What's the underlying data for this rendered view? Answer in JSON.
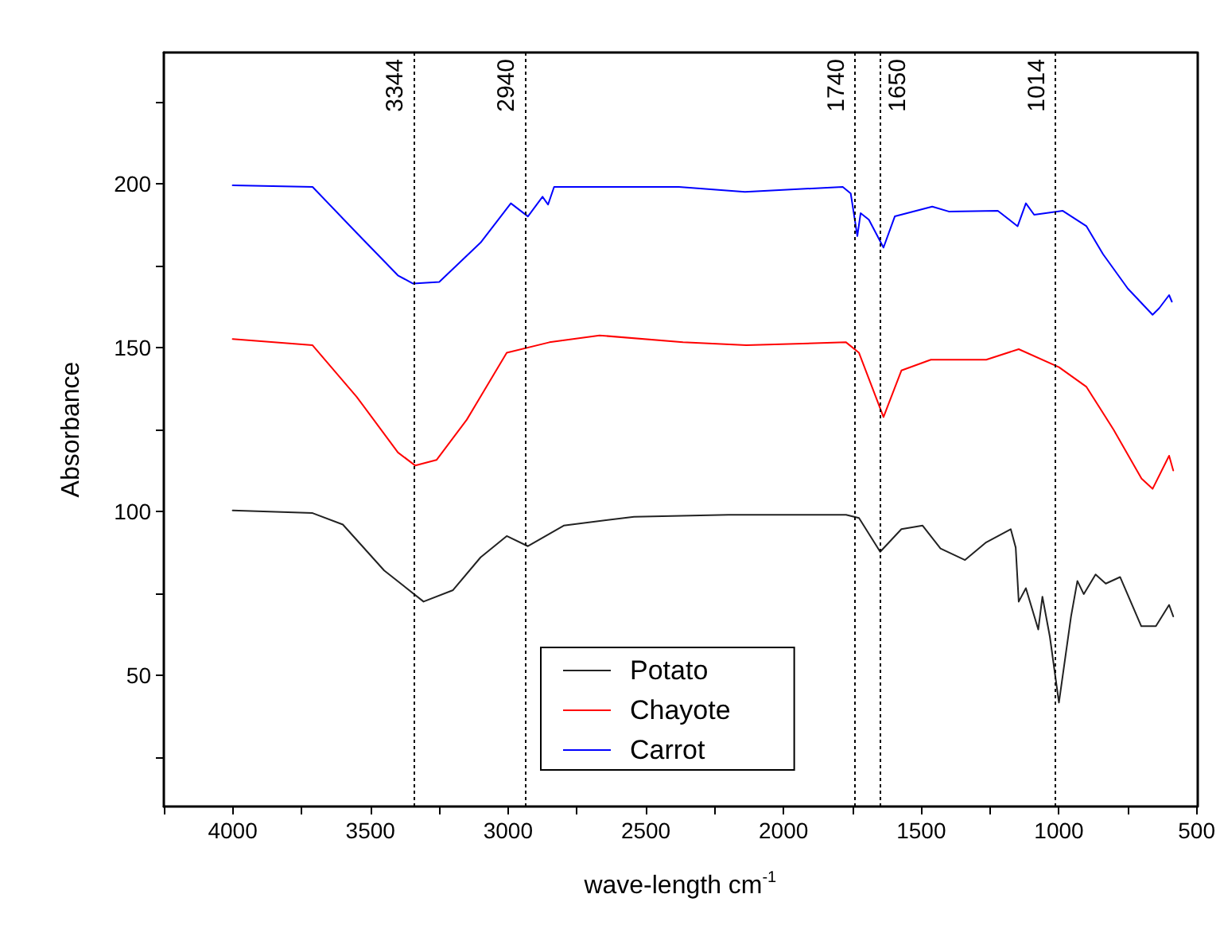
{
  "chart_data": {
    "type": "line",
    "xlabel": "wave-length cm$^{-1}$",
    "ylabel": "Absorbance",
    "xlim": [
      4250,
      500
    ],
    "ylim": [
      10,
      240
    ],
    "xticks": [
      {
        "value": 4250,
        "label": null
      },
      4000,
      {
        "value": 3750,
        "label": null
      },
      3500,
      {
        "value": 3250,
        "label": null
      },
      3000,
      {
        "value": 2750,
        "label": null
      },
      2500,
      {
        "value": 2250,
        "label": null
      },
      2000,
      {
        "value": 1750,
        "label": null
      },
      1500,
      {
        "value": 1250,
        "label": null
      },
      1000,
      {
        "value": 750,
        "label": null
      },
      500
    ],
    "yticks": [
      {
        "value": 25,
        "label": null
      },
      50,
      {
        "value": 75,
        "label": null
      },
      100,
      {
        "value": 125,
        "label": null
      },
      150,
      {
        "value": 175,
        "label": null
      },
      200,
      {
        "value": 225,
        "label": null
      }
    ],
    "grid": false,
    "legend": "bottom",
    "marker": "none",
    "line_style": "solid",
    "ref_lines": [
      {
        "axis": "x",
        "value": 3344,
        "label": "3344",
        "color": "#000000",
        "line_style": "dotted"
      },
      {
        "axis": "x",
        "value": 2940,
        "label": "2940",
        "color": "#000000",
        "line_style": "dotted"
      },
      {
        "axis": "x",
        "value": 1740,
        "label": "1740",
        "color": "#000000",
        "line_style": "dotted"
      },
      {
        "axis": "x",
        "value": 1650,
        "label": "1650",
        "color": "#000000",
        "line_style": "dotted"
      },
      {
        "axis": "x",
        "value": 1014,
        "label": "1014",
        "color": "#000000",
        "line_style": "dotted"
      }
    ],
    "series": [
      {
        "name": "Potato",
        "color": "#222222",
        "x": [
          4000,
          3710,
          3600,
          3450,
          3307,
          3200,
          3100,
          3005,
          2928,
          2798,
          2543,
          2200,
          1773,
          1726,
          1649,
          1572,
          1495,
          1430,
          1341,
          1264,
          1175,
          1157,
          1146,
          1120,
          1075,
          1060,
          1033,
          1000,
          956,
          933,
          910,
          867,
          830,
          778,
          701,
          648,
          600,
          585
        ],
        "values": [
          100.3,
          99.5,
          96,
          82,
          72.5,
          76,
          86,
          92.5,
          89.4,
          95.7,
          98.4,
          99,
          99,
          98,
          87.7,
          94.6,
          95.7,
          88.7,
          85.2,
          90.6,
          94.6,
          89,
          72.5,
          76.6,
          64,
          74,
          61.8,
          41.7,
          68,
          78.8,
          74.8,
          80.8,
          78,
          80,
          65,
          65,
          71.5,
          68
        ]
      },
      {
        "name": "Chayote",
        "color": "#ff0000",
        "x": [
          4000,
          3710,
          3550,
          3400,
          3337,
          3260,
          3150,
          3005,
          2850,
          2668,
          2365,
          2135,
          1773,
          1726,
          1637,
          1572,
          1465,
          1264,
          1146,
          1000,
          900,
          802,
          700,
          660,
          600,
          585
        ],
        "values": [
          152.6,
          150.7,
          135,
          118,
          114,
          115.7,
          128,
          148.4,
          151.6,
          153.7,
          151.6,
          150.7,
          151.6,
          148.4,
          128.8,
          143,
          146.3,
          146.3,
          149.5,
          144,
          138,
          125,
          110,
          106.9,
          117,
          112.5
        ]
      },
      {
        "name": "Carrot",
        "color": "#0000ff",
        "x": [
          4000,
          3710,
          3550,
          3400,
          3345,
          3250,
          3100,
          2990,
          2928,
          2875,
          2855,
          2833,
          2380,
          2140,
          1785,
          1756,
          1732,
          1720,
          1690,
          1637,
          1596,
          1460,
          1400,
          1222,
          1150,
          1120,
          1090,
          986,
          900,
          840,
          750,
          660,
          636,
          600,
          590
        ],
        "values": [
          199.5,
          199,
          185,
          172,
          169.5,
          170,
          182,
          194,
          190,
          196,
          193.6,
          199,
          199,
          197.5,
          199,
          197,
          184,
          191,
          189,
          180.5,
          190,
          193,
          191.5,
          191.7,
          187,
          194,
          190.5,
          191.7,
          187,
          178.5,
          168,
          160,
          162,
          166,
          164
        ]
      }
    ]
  }
}
